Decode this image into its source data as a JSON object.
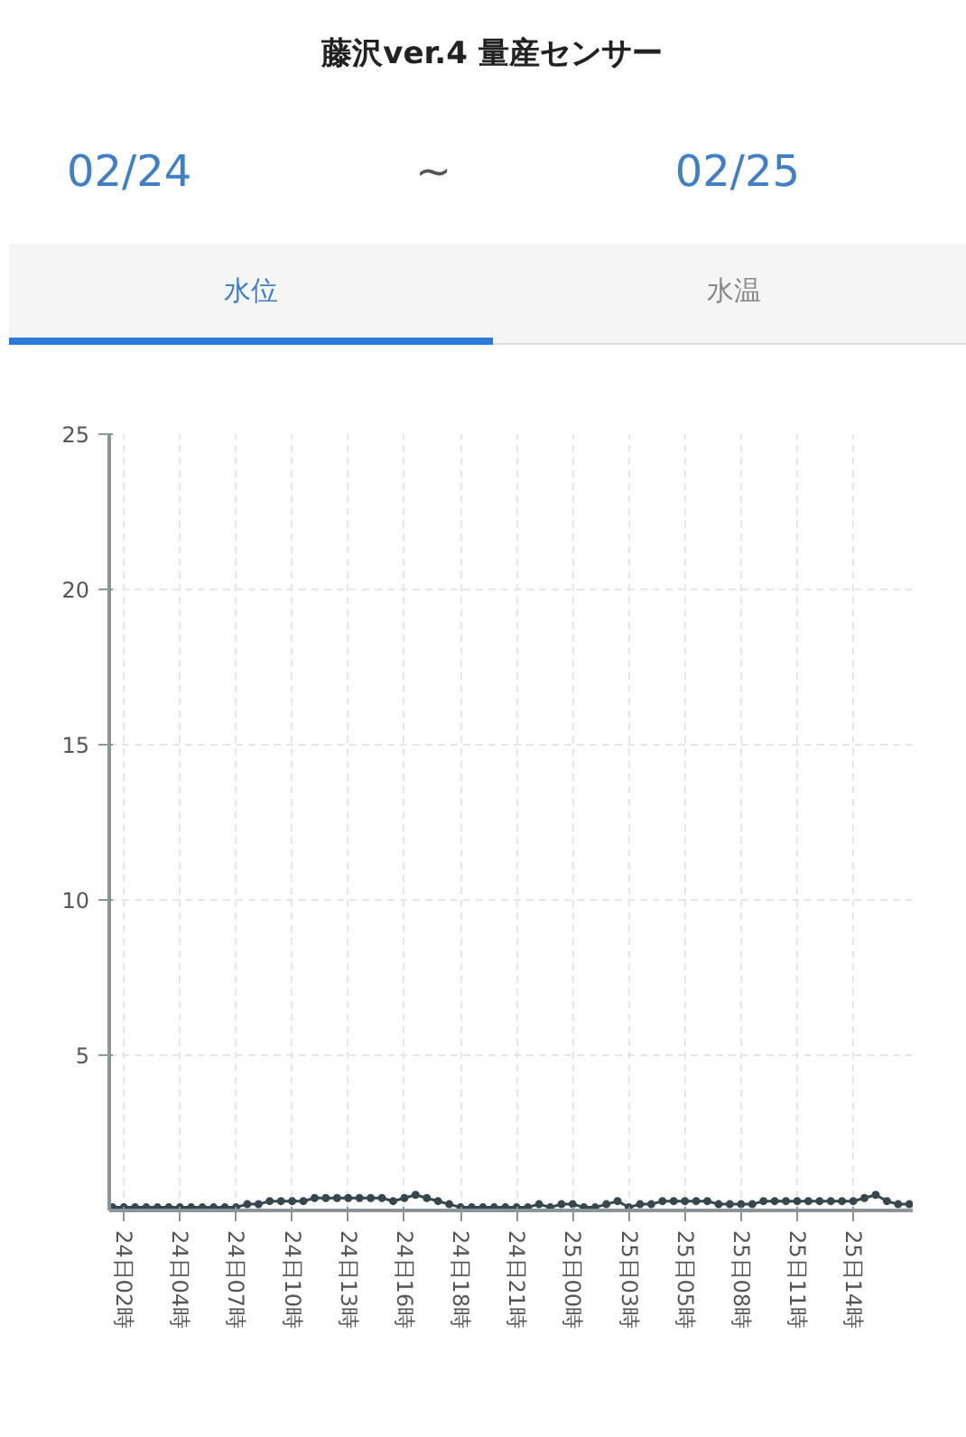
{
  "chart_data": {
    "type": "line",
    "title": "藤沢ver.4 量産センサー",
    "subtitle": "02/24 ~ 02/25",
    "annotations": [
      "水位",
      "水温"
    ],
    "categories": [
      null,
      "24日02時",
      null,
      null,
      null,
      null,
      "24日04時",
      null,
      null,
      null,
      null,
      "24日07時",
      null,
      null,
      null,
      null,
      "24日10時",
      null,
      null,
      null,
      null,
      "24日13時",
      null,
      null,
      null,
      null,
      "24日16時",
      null,
      null,
      null,
      null,
      "24日18時",
      null,
      null,
      null,
      null,
      "24日21時",
      null,
      null,
      null,
      null,
      "25日00時",
      null,
      null,
      null,
      null,
      "25日03時",
      null,
      null,
      null,
      null,
      "25日05時",
      null,
      null,
      null,
      null,
      "25日08時",
      null,
      null,
      null,
      null,
      "25日11時",
      null,
      null,
      null,
      null,
      "25日14時",
      null,
      null,
      null,
      null,
      null
    ],
    "series": [
      {
        "color": "#37474f",
        "values": [
          0.1,
          0.1,
          0.1,
          0.1,
          0.1,
          0.1,
          0.1,
          0.1,
          0.1,
          0.1,
          0.1,
          0.1,
          0.2,
          0.2,
          0.3,
          0.3,
          0.3,
          0.3,
          0.4,
          0.4,
          0.4,
          0.4,
          0.4,
          0.4,
          0.4,
          0.3,
          0.4,
          0.5,
          0.4,
          0.3,
          0.2,
          0.1,
          0.1,
          0.1,
          0.1,
          0.1,
          0.1,
          0.1,
          0.2,
          0.1,
          0.2,
          0.2,
          0.1,
          0.1,
          0.2,
          0.3,
          0.1,
          0.2,
          0.2,
          0.3,
          0.3,
          0.3,
          0.3,
          0.3,
          0.2,
          0.2,
          0.2,
          0.2,
          0.3,
          0.3,
          0.3,
          0.3,
          0.3,
          0.3,
          0.3,
          0.3,
          0.3,
          0.4,
          0.5,
          0.3,
          0.2,
          0.2
        ]
      }
    ],
    "ylim": [
      0,
      25
    ],
    "yticks": [
      5,
      10,
      15,
      20,
      25
    ],
    "grid": true,
    "marker": "circle",
    "line_style": "solid"
  }
}
